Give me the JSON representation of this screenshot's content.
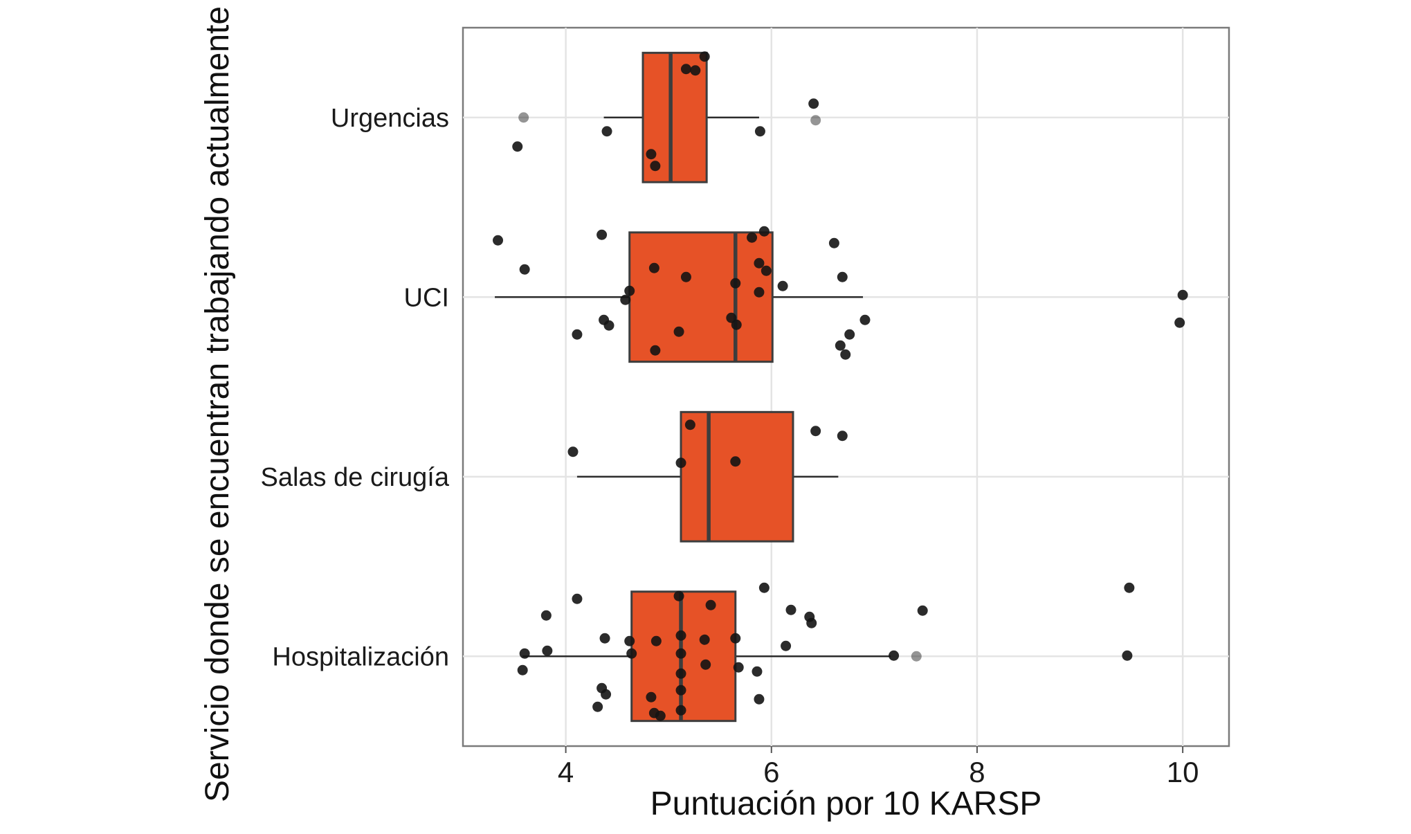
{
  "figure": {
    "title": "",
    "xlabel": "Puntuación por 10 KARSP",
    "ylabel": "Servicio donde se encuentran trabajando actualmente"
  },
  "chart_data": {
    "type": "boxplot",
    "orientation": "horizontal",
    "title": "",
    "xlabel": "Puntuación por 10 KARSP",
    "ylabel": "Servicio donde se encuentran trabajando actualmente",
    "xlim": [
      3.0,
      10.45
    ],
    "x_ticks": [
      4,
      6,
      8,
      10
    ],
    "x_tick_labels": [
      "4",
      "6",
      "8",
      "10"
    ],
    "grid": true,
    "legend": "none",
    "categories": [
      "Urgencias",
      "UCI",
      "Salas de cirugía",
      "Hospitalización"
    ],
    "style": {
      "box_fill": "#E65227",
      "box_stroke": "#3d3d3d",
      "whisker_color": "#2b2b2b",
      "point_color": "#141414",
      "grid_color": "#e4e4e4",
      "panel_border": "#7a7a7a",
      "text_color": "#1a1a1a"
    },
    "boxes": [
      {
        "category": "Urgencias",
        "whisker_low": 4.37,
        "q1": 4.75,
        "median": 5.02,
        "q3": 5.37,
        "whisker_high": 5.88
      },
      {
        "category": "UCI",
        "whisker_low": 3.31,
        "q1": 4.62,
        "median": 5.65,
        "q3": 6.01,
        "whisker_high": 6.89
      },
      {
        "category": "Salas de cirugía",
        "whisker_low": 4.11,
        "q1": 5.12,
        "median": 5.39,
        "q3": 6.21,
        "whisker_high": 6.65
      },
      {
        "category": "Hospitalización",
        "whisker_low": 3.58,
        "q1": 4.64,
        "median": 5.12,
        "q3": 5.65,
        "whisker_high": 7.16
      }
    ],
    "points": [
      {
        "category": "Urgencias",
        "x": 5.35,
        "dy": -88
      },
      {
        "category": "Urgencias",
        "x": 5.17,
        "dy": -70
      },
      {
        "category": "Urgencias",
        "x": 5.26,
        "dy": -68
      },
      {
        "category": "Urgencias",
        "x": 6.41,
        "dy": -20
      },
      {
        "category": "Urgencias",
        "x": 6.43,
        "dy": 4,
        "muted": true
      },
      {
        "category": "Urgencias",
        "x": 3.59,
        "dy": 0,
        "muted": true
      },
      {
        "category": "Urgencias",
        "x": 4.4,
        "dy": 20
      },
      {
        "category": "Urgencias",
        "x": 5.89,
        "dy": 20
      },
      {
        "category": "Urgencias",
        "x": 3.53,
        "dy": 42
      },
      {
        "category": "Urgencias",
        "x": 4.83,
        "dy": 53
      },
      {
        "category": "Urgencias",
        "x": 4.87,
        "dy": 70
      },
      {
        "category": "UCI",
        "x": 3.34,
        "dy": -82
      },
      {
        "category": "UCI",
        "x": 4.35,
        "dy": -90
      },
      {
        "category": "UCI",
        "x": 5.93,
        "dy": -95
      },
      {
        "category": "UCI",
        "x": 5.81,
        "dy": -86
      },
      {
        "category": "UCI",
        "x": 6.61,
        "dy": -78
      },
      {
        "category": "UCI",
        "x": 3.6,
        "dy": -40
      },
      {
        "category": "UCI",
        "x": 4.86,
        "dy": -42
      },
      {
        "category": "UCI",
        "x": 5.88,
        "dy": -49
      },
      {
        "category": "UCI",
        "x": 5.95,
        "dy": -38
      },
      {
        "category": "UCI",
        "x": 5.17,
        "dy": -29
      },
      {
        "category": "UCI",
        "x": 5.65,
        "dy": -20
      },
      {
        "category": "UCI",
        "x": 6.69,
        "dy": -29
      },
      {
        "category": "UCI",
        "x": 6.11,
        "dy": -16
      },
      {
        "category": "UCI",
        "x": 5.88,
        "dy": -7
      },
      {
        "category": "UCI",
        "x": 4.62,
        "dy": -9
      },
      {
        "category": "UCI",
        "x": 4.58,
        "dy": 4
      },
      {
        "category": "UCI",
        "x": 10.0,
        "dy": -3
      },
      {
        "category": "UCI",
        "x": 9.97,
        "dy": 37
      },
      {
        "category": "UCI",
        "x": 5.61,
        "dy": 30
      },
      {
        "category": "UCI",
        "x": 5.66,
        "dy": 40
      },
      {
        "category": "UCI",
        "x": 4.37,
        "dy": 33
      },
      {
        "category": "UCI",
        "x": 4.42,
        "dy": 41
      },
      {
        "category": "UCI",
        "x": 6.91,
        "dy": 33
      },
      {
        "category": "UCI",
        "x": 4.11,
        "dy": 54
      },
      {
        "category": "UCI",
        "x": 5.1,
        "dy": 50
      },
      {
        "category": "UCI",
        "x": 6.76,
        "dy": 54
      },
      {
        "category": "UCI",
        "x": 6.67,
        "dy": 70
      },
      {
        "category": "UCI",
        "x": 4.87,
        "dy": 77
      },
      {
        "category": "UCI",
        "x": 6.72,
        "dy": 83
      },
      {
        "category": "Salas de cirugía",
        "x": 5.21,
        "dy": -75
      },
      {
        "category": "Salas de cirugía",
        "x": 6.43,
        "dy": -66
      },
      {
        "category": "Salas de cirugía",
        "x": 6.69,
        "dy": -59
      },
      {
        "category": "Salas de cirugía",
        "x": 4.07,
        "dy": -36
      },
      {
        "category": "Salas de cirugía",
        "x": 5.12,
        "dy": -20
      },
      {
        "category": "Salas de cirugía",
        "x": 5.65,
        "dy": -22
      },
      {
        "category": "Hospitalización",
        "x": 5.93,
        "dy": -99
      },
      {
        "category": "Hospitalización",
        "x": 9.48,
        "dy": -99
      },
      {
        "category": "Hospitalización",
        "x": 4.11,
        "dy": -83
      },
      {
        "category": "Hospitalización",
        "x": 5.1,
        "dy": -87
      },
      {
        "category": "Hospitalización",
        "x": 5.41,
        "dy": -74
      },
      {
        "category": "Hospitalización",
        "x": 6.19,
        "dy": -67
      },
      {
        "category": "Hospitalización",
        "x": 6.37,
        "dy": -57
      },
      {
        "category": "Hospitalización",
        "x": 6.39,
        "dy": -48
      },
      {
        "category": "Hospitalización",
        "x": 7.47,
        "dy": -66
      },
      {
        "category": "Hospitalización",
        "x": 3.81,
        "dy": -59
      },
      {
        "category": "Hospitalización",
        "x": 4.38,
        "dy": -26
      },
      {
        "category": "Hospitalización",
        "x": 4.62,
        "dy": -22
      },
      {
        "category": "Hospitalización",
        "x": 4.88,
        "dy": -22
      },
      {
        "category": "Hospitalización",
        "x": 5.12,
        "dy": -30
      },
      {
        "category": "Hospitalización",
        "x": 5.35,
        "dy": -24
      },
      {
        "category": "Hospitalización",
        "x": 5.65,
        "dy": -26
      },
      {
        "category": "Hospitalización",
        "x": 6.14,
        "dy": -15
      },
      {
        "category": "Hospitalización",
        "x": 3.6,
        "dy": -4
      },
      {
        "category": "Hospitalización",
        "x": 3.82,
        "dy": -8
      },
      {
        "category": "Hospitalización",
        "x": 4.64,
        "dy": -4
      },
      {
        "category": "Hospitalización",
        "x": 5.12,
        "dy": -4
      },
      {
        "category": "Hospitalización",
        "x": 5.36,
        "dy": 12
      },
      {
        "category": "Hospitalización",
        "x": 5.68,
        "dy": 16
      },
      {
        "category": "Hospitalización",
        "x": 7.19,
        "dy": -1
      },
      {
        "category": "Hospitalización",
        "x": 7.41,
        "dy": 0,
        "muted": true
      },
      {
        "category": "Hospitalización",
        "x": 9.46,
        "dy": -1
      },
      {
        "category": "Hospitalización",
        "x": 3.58,
        "dy": 20
      },
      {
        "category": "Hospitalización",
        "x": 5.12,
        "dy": 25
      },
      {
        "category": "Hospitalización",
        "x": 5.86,
        "dy": 22
      },
      {
        "category": "Hospitalización",
        "x": 4.35,
        "dy": 46
      },
      {
        "category": "Hospitalización",
        "x": 4.39,
        "dy": 55
      },
      {
        "category": "Hospitalización",
        "x": 4.83,
        "dy": 59
      },
      {
        "category": "Hospitalización",
        "x": 5.12,
        "dy": 49
      },
      {
        "category": "Hospitalización",
        "x": 5.88,
        "dy": 62
      },
      {
        "category": "Hospitalización",
        "x": 4.31,
        "dy": 73
      },
      {
        "category": "Hospitalización",
        "x": 4.86,
        "dy": 82
      },
      {
        "category": "Hospitalización",
        "x": 4.92,
        "dy": 86
      },
      {
        "category": "Hospitalización",
        "x": 5.12,
        "dy": 78
      }
    ]
  }
}
